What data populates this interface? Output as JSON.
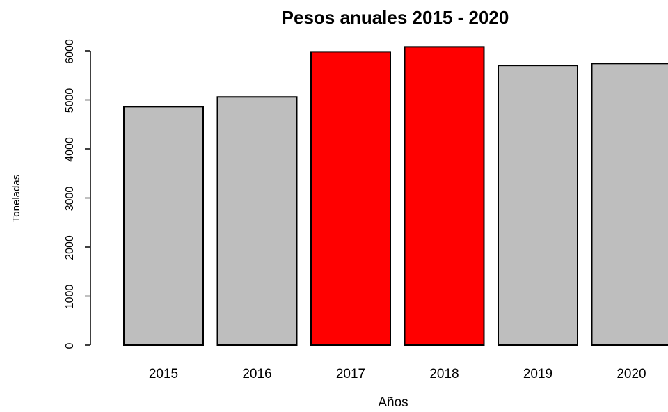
{
  "chart_data": {
    "type": "bar",
    "title": "Pesos anuales 2015 - 2020",
    "xlabel": "Años",
    "ylabel": "Toneladas",
    "categories": [
      "2015",
      "2016",
      "2017",
      "2018",
      "2019",
      "2020"
    ],
    "values": [
      4860,
      5060,
      5980,
      6080,
      5700,
      5740
    ],
    "colors": [
      "#bebebe",
      "#bebebe",
      "#ff0000",
      "#ff0000",
      "#bebebe",
      "#bebebe"
    ],
    "bar_border_color": "#000000",
    "yticks": [
      0,
      1000,
      2000,
      3000,
      4000,
      5000,
      6000
    ],
    "ylim": [
      0,
      6000
    ],
    "grid": false
  }
}
